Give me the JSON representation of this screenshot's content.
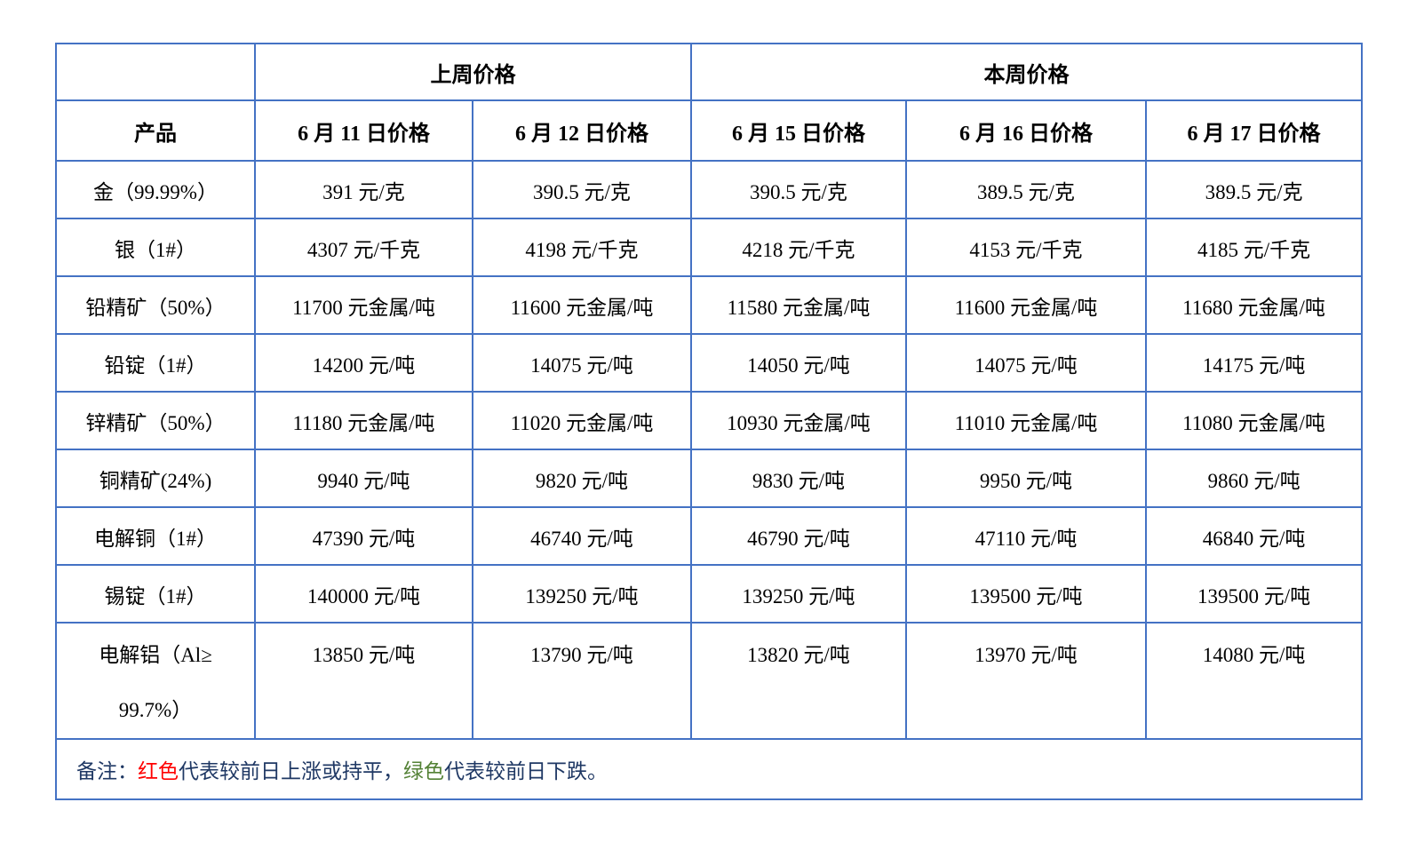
{
  "colors": {
    "red": "#FF0000",
    "green": "#538135",
    "navy": "#1F3864",
    "border": "#4472C4",
    "text": "#000000",
    "background": "#FFFFFF"
  },
  "table": {
    "group_header": {
      "last_week": "上周价格",
      "this_week": "本周价格"
    },
    "columns": [
      "产品",
      "6 月 11 日价格",
      "6 月 12 日价格",
      "6 月 15 日价格",
      "6 月 16 日价格",
      "6 月 17 日价格"
    ],
    "rows": [
      {
        "product": "金（99.99%）",
        "cells": [
          {
            "text": "391 元/克",
            "color": "red"
          },
          {
            "text": "390.5 元/克",
            "color": "green"
          },
          {
            "text": "390.5 元/克",
            "color": "red"
          },
          {
            "text": "389.5 元/克",
            "color": "green"
          },
          {
            "text": "389.5 元/克",
            "color": "red"
          }
        ]
      },
      {
        "product": "银（1#）",
        "cells": [
          {
            "text": "4307 元/千克",
            "color": "red"
          },
          {
            "text": "4198 元/千克",
            "color": "green"
          },
          {
            "text": "4218 元/千克",
            "color": "red"
          },
          {
            "text": "4153 元/千克",
            "color": "green"
          },
          {
            "text": "4185 元/千克",
            "color": "red"
          }
        ]
      },
      {
        "product": "铅精矿（50%）",
        "cells": [
          {
            "text": "11700 元金属/吨",
            "color": "green"
          },
          {
            "text": "11600 元金属/吨",
            "color": "green"
          },
          {
            "text": "11580 元金属/吨",
            "color": "green"
          },
          {
            "text": "11600 元金属/吨",
            "color": "red"
          },
          {
            "text": "11680 元金属/吨",
            "color": "red"
          }
        ]
      },
      {
        "product": "铅锭（1#）",
        "cells": [
          {
            "text": "14200 元/吨",
            "color": "green"
          },
          {
            "text": "14075 元/吨",
            "color": "green"
          },
          {
            "text": "14050 元/吨",
            "color": "green"
          },
          {
            "text": "14075 元/吨",
            "color": "red"
          },
          {
            "text": "14175 元/吨",
            "color": "red"
          }
        ]
      },
      {
        "product": "锌精矿（50%）",
        "cells": [
          {
            "text": "11180 元金属/吨",
            "color": "red"
          },
          {
            "text": "11020 元金属/吨",
            "color": "green"
          },
          {
            "text": "10930 元金属/吨",
            "color": "green"
          },
          {
            "text": "11010 元金属/吨",
            "color": "red"
          },
          {
            "text": "11080 元金属/吨",
            "color": "red"
          }
        ]
      },
      {
        "product": "铜精矿(24%)",
        "cells": [
          {
            "text": "9940 元/吨",
            "color": "red"
          },
          {
            "text": "9820 元/吨",
            "color": "green"
          },
          {
            "text": "9830 元/吨",
            "color": "red"
          },
          {
            "text": "9950 元/吨",
            "color": "red"
          },
          {
            "text": "9860 元/吨",
            "color": "green"
          }
        ]
      },
      {
        "product": "电解铜（1#）",
        "cells": [
          {
            "text": "47390 元/吨",
            "color": "red"
          },
          {
            "text": "46740 元/吨",
            "color": "green"
          },
          {
            "text": "46790 元/吨",
            "color": "red"
          },
          {
            "text": "47110 元/吨",
            "color": "red"
          },
          {
            "text": "46840 元/吨",
            "color": "green"
          }
        ]
      },
      {
        "product": "锡锭（1#）",
        "cells": [
          {
            "text": "140000 元/吨",
            "color": "green"
          },
          {
            "text": "139250 元/吨",
            "color": "green"
          },
          {
            "text": "139250 元/吨",
            "color": "red"
          },
          {
            "text": "139500 元/吨",
            "color": "red"
          },
          {
            "text": "139500 元/吨",
            "color": "red"
          }
        ]
      },
      {
        "product": "电解铝（Al≥\n99.7%）",
        "cells": [
          {
            "text": "13850 元/吨",
            "color": "red"
          },
          {
            "text": "13790 元/吨",
            "color": "green"
          },
          {
            "text": "13820 元/吨",
            "color": "red"
          },
          {
            "text": "13970 元/吨",
            "color": "red"
          },
          {
            "text": "14080 元/吨",
            "color": "red"
          }
        ]
      }
    ],
    "note_segments": [
      {
        "text": "备注：",
        "color": "navy"
      },
      {
        "text": "红色",
        "color": "red"
      },
      {
        "text": "代表较前日上涨或持平，",
        "color": "navy"
      },
      {
        "text": "绿色",
        "color": "green"
      },
      {
        "text": "代表较前日下跌。",
        "color": "navy"
      }
    ]
  }
}
